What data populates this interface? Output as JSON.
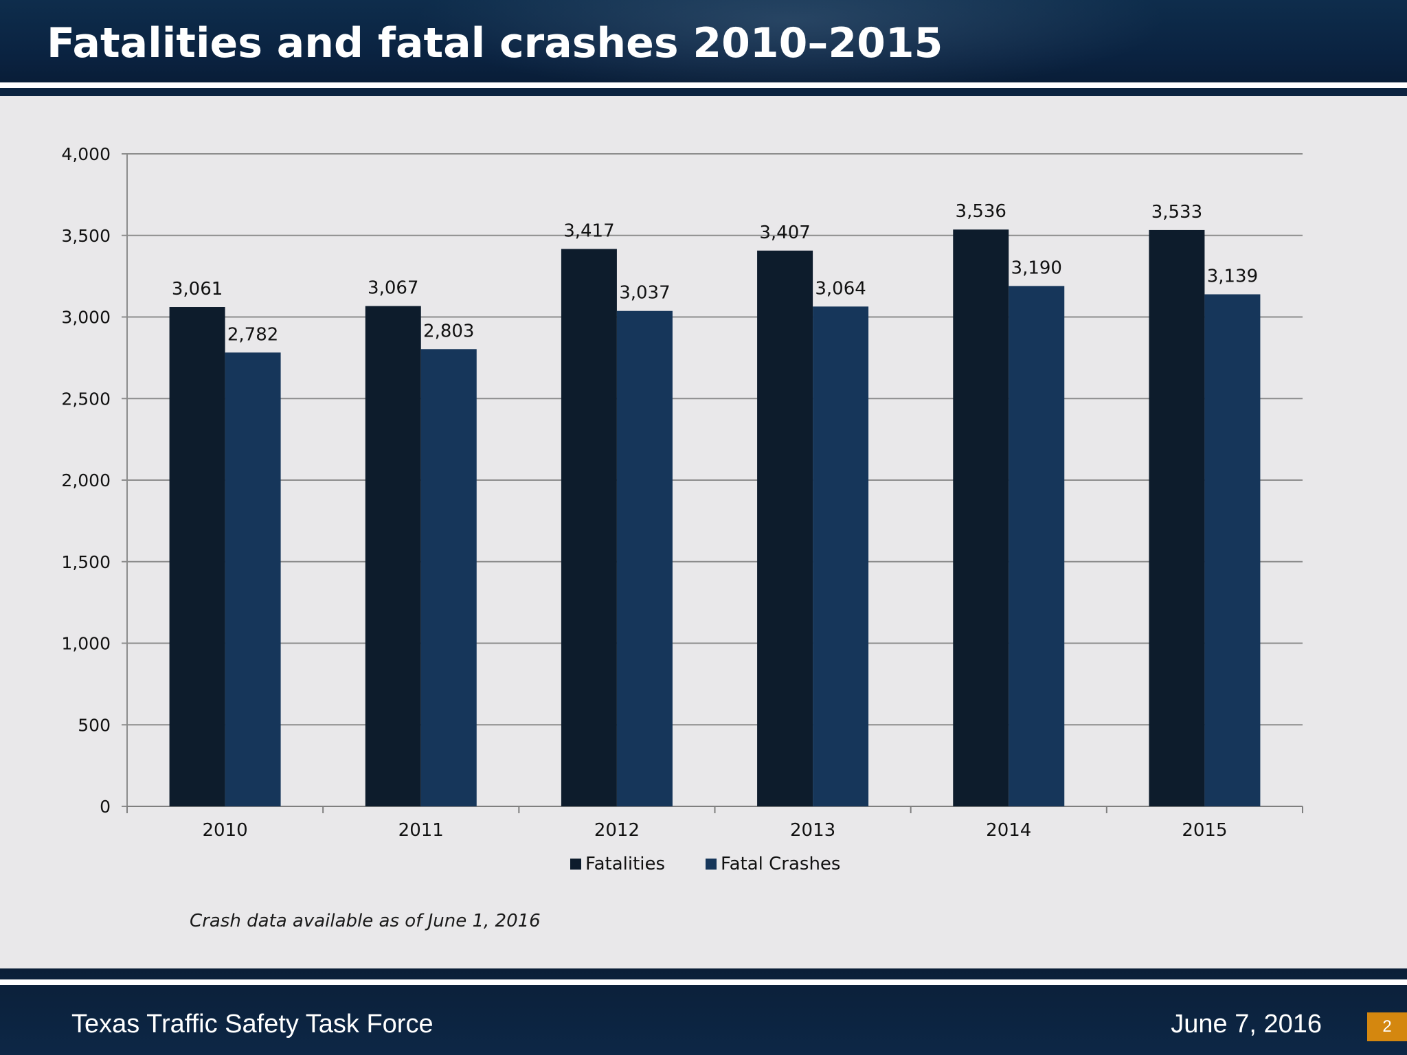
{
  "slide": {
    "title": "Fatalities and fatal crashes 2010–2015",
    "footnote": "Crash data available as of June 1, 2016",
    "footer_org": "Texas Traffic Safety Task Force",
    "footer_date": "June 7, 2016",
    "page_number": "2"
  },
  "colors": {
    "fatalities": "#0d1c2c",
    "fatal_crashes": "#16365a",
    "gridline": "#8c8c8c",
    "background": "#e9e8ea",
    "header": "#0a2240",
    "page_badge": "#d4870f"
  },
  "chart_data": {
    "type": "bar",
    "categories": [
      "2010",
      "2011",
      "2012",
      "2013",
      "2014",
      "2015"
    ],
    "series": [
      {
        "name": "Fatalities",
        "values": [
          3061,
          3067,
          3417,
          3407,
          3536,
          3533
        ]
      },
      {
        "name": "Fatal Crashes",
        "values": [
          2782,
          2803,
          3037,
          3064,
          3190,
          3139
        ]
      }
    ],
    "data_labels": [
      [
        "3,061",
        "3,067",
        "3,417",
        "3,407",
        "3,536",
        "3,533"
      ],
      [
        "2,782",
        "2,803",
        "3,037",
        "3,064",
        "3,190",
        "3,139"
      ]
    ],
    "y_ticks": [
      "0",
      "500",
      "1,000",
      "1,500",
      "2,000",
      "2,500",
      "3,000",
      "3,500",
      "4,000"
    ],
    "ylim": [
      0,
      4000
    ],
    "grid": true,
    "legend": "bottom",
    "title": "",
    "xlabel": "",
    "ylabel": ""
  }
}
